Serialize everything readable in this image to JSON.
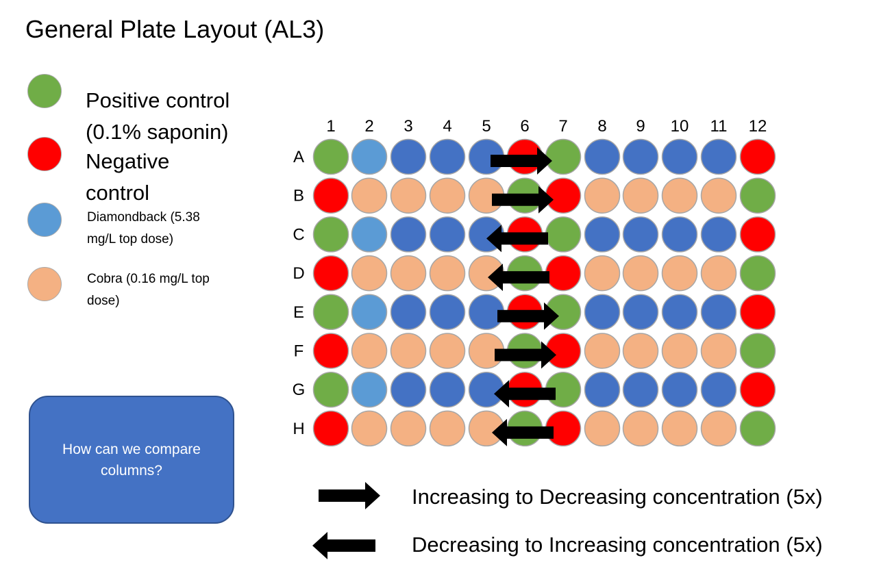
{
  "title": "General Plate Layout (AL3)",
  "legend": [
    {
      "color": "#70ad47",
      "line1": "Positive control",
      "line2": "(0.1% saponin)"
    },
    {
      "color": "#ff0000",
      "line1": "Negative",
      "line2": "control"
    },
    {
      "color": "#5b9bd5",
      "line1": "Diamondback (5.38",
      "line2": "mg/L top dose)"
    },
    {
      "color": "#f4b183",
      "line1": "Cobra (0.16 mg/L top",
      "line2": "dose)"
    }
  ],
  "callout": {
    "text": "How can we compare columns?"
  },
  "plate": {
    "columns": [
      "1",
      "2",
      "3",
      "4",
      "5",
      "6",
      "7",
      "8",
      "9",
      "10",
      "11",
      "12"
    ],
    "rows": [
      "A",
      "B",
      "C",
      "D",
      "E",
      "F",
      "G",
      "H"
    ],
    "colors": {
      "G": "#70ad47",
      "R": "#ff0000",
      "L": "#5b9bd5",
      "B": "#4472c4",
      "O": "#f4b183"
    },
    "wells": [
      "GLBBBRGBBBBR",
      "ROOOOGROOOOG",
      "GLBBBRGBBBBR",
      "ROOOOGROOOOG",
      "GLBBBRGBBBBR",
      "ROOOOGROOOOG",
      "GLBBBRGBBBBR",
      "ROOOOGROOOOG"
    ],
    "row_arrows": [
      "right",
      "right",
      "left",
      "left",
      "right",
      "right",
      "left",
      "left"
    ]
  },
  "key": [
    {
      "direction": "right",
      "text": "Increasing to Decreasing concentration (5x)"
    },
    {
      "direction": "left",
      "text": "Decreasing to Increasing concentration (5x)"
    }
  ]
}
